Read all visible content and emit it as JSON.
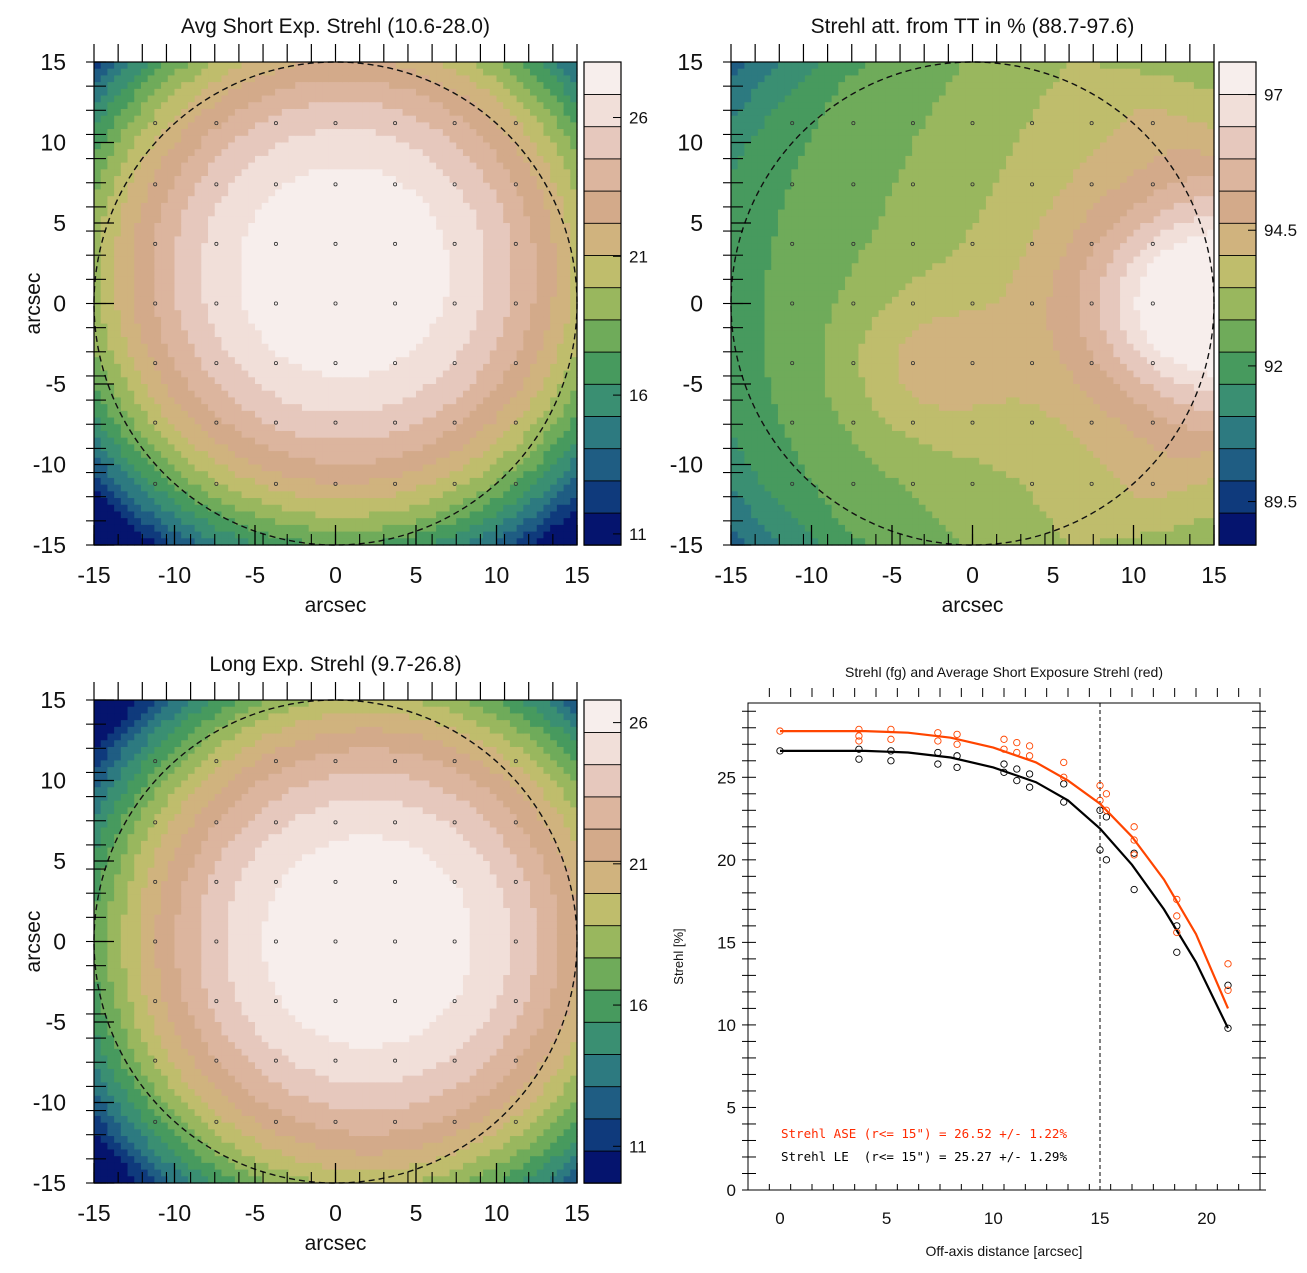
{
  "chart_data": [
    {
      "type": "heatmap",
      "title": "Avg Short Exp. Strehl (10.6-28.0)",
      "xlabel": "arcsec",
      "ylabel": "arcsec",
      "xlim": [
        -15,
        15
      ],
      "ylim": [
        -15,
        15
      ],
      "x_ticks": [
        "-15",
        "-10",
        "-5",
        "0",
        "5",
        "10",
        "15"
      ],
      "y_ticks": [
        "15",
        "10",
        "5",
        "0",
        "-5",
        "-10",
        "-15"
      ],
      "value_range": [
        10.6,
        28.0
      ],
      "colorbar_ticks": [
        "26",
        "21",
        "16",
        "11"
      ],
      "colorbar_tick_values": [
        26,
        21,
        16,
        11
      ],
      "field_model": "radial",
      "center": [
        0.5,
        2.0
      ],
      "peak": 28.0,
      "edge": 10.6,
      "overlay": "dashed circle r = 15 arcsec, sample grid points"
    },
    {
      "type": "heatmap",
      "title": "Strehl att. from TT in % (88.7-97.6)",
      "xlabel": "arcsec",
      "ylabel": "",
      "xlim": [
        -15,
        15
      ],
      "ylim": [
        -15,
        15
      ],
      "x_ticks": [
        "-15",
        "-10",
        "-5",
        "0",
        "5",
        "10",
        "15"
      ],
      "y_ticks": [
        "15",
        "10",
        "5",
        "0",
        "-5",
        "-10",
        "-15"
      ],
      "value_range": [
        88.7,
        97.6
      ],
      "colorbar_ticks": [
        "97",
        "94.5",
        "92",
        "89.5"
      ],
      "colorbar_tick_values": [
        97,
        94.5,
        92,
        89.5
      ],
      "field_model": "tt",
      "overlay": "dashed circle r = 15 arcsec, sample grid points"
    },
    {
      "type": "heatmap",
      "title": "Long Exp. Strehl (9.7-26.8)",
      "xlabel": "arcsec",
      "ylabel": "arcsec",
      "xlim": [
        -15,
        15
      ],
      "ylim": [
        -15,
        15
      ],
      "x_ticks": [
        "-15",
        "-10",
        "-5",
        "0",
        "5",
        "10",
        "15"
      ],
      "y_ticks": [
        "15",
        "10",
        "5",
        "0",
        "-5",
        "-10",
        "-15"
      ],
      "value_range": [
        9.7,
        26.8
      ],
      "colorbar_ticks": [
        "26",
        "21",
        "16",
        "11"
      ],
      "colorbar_tick_values": [
        26,
        21,
        16,
        11
      ],
      "field_model": "radial",
      "center": [
        2.0,
        0.0
      ],
      "peak": 26.8,
      "edge": 9.7,
      "overlay": "dashed circle r = 15 arcsec, sample grid points"
    },
    {
      "type": "scatter",
      "title": "Strehl (fg) and Average Short Exposure Strehl (red)",
      "xlabel": "Off-axis distance [arcsec]",
      "ylabel": "Strehl [%]",
      "xlim": [
        -1.5,
        22.5
      ],
      "ylim": [
        0,
        29.5
      ],
      "x_ticks": [
        "0",
        "5",
        "10",
        "15",
        "20"
      ],
      "y_ticks": [
        "0",
        "5",
        "10",
        "15",
        "20",
        "25"
      ],
      "vline_x": 15,
      "series": [
        {
          "color": "#ff4500",
          "fit_curve": [
            [
              0,
              27.8
            ],
            [
              2,
              27.8
            ],
            [
              4,
              27.8
            ],
            [
              6,
              27.7
            ],
            [
              8,
              27.4
            ],
            [
              10,
              26.8
            ],
            [
              12,
              25.9
            ],
            [
              13.5,
              24.8
            ],
            [
              15,
              23.4
            ],
            [
              16.5,
              21.4
            ],
            [
              18,
              18.8
            ],
            [
              19.5,
              15.5
            ],
            [
              21,
              11.0
            ]
          ],
          "points": [
            [
              0,
              27.8
            ],
            [
              3.7,
              27.9
            ],
            [
              3.7,
              27.5
            ],
            [
              3.7,
              27.2
            ],
            [
              5.2,
              27.9
            ],
            [
              5.2,
              27.3
            ],
            [
              7.4,
              27.7
            ],
            [
              7.4,
              27.2
            ],
            [
              8.3,
              27.6
            ],
            [
              8.3,
              27.0
            ],
            [
              10.5,
              27.3
            ],
            [
              10.5,
              26.7
            ],
            [
              11.1,
              27.1
            ],
            [
              11.1,
              26.5
            ],
            [
              11.7,
              26.9
            ],
            [
              11.7,
              26.3
            ],
            [
              13.3,
              25.9
            ],
            [
              13.3,
              25.0
            ],
            [
              15,
              24.5
            ],
            [
              15,
              23.6
            ],
            [
              15.3,
              24.0
            ],
            [
              15.3,
              23.0
            ],
            [
              16.6,
              22.0
            ],
            [
              16.6,
              21.2
            ],
            [
              16.6,
              20.3
            ],
            [
              18.6,
              17.6
            ],
            [
              18.6,
              16.6
            ],
            [
              18.6,
              15.6
            ],
            [
              21,
              13.7
            ],
            [
              21,
              12.1
            ]
          ]
        },
        {
          "color": "#000000",
          "fit_curve": [
            [
              0,
              26.6
            ],
            [
              2,
              26.6
            ],
            [
              4,
              26.6
            ],
            [
              6,
              26.5
            ],
            [
              8,
              26.2
            ],
            [
              10,
              25.6
            ],
            [
              12,
              24.7
            ],
            [
              13.5,
              23.6
            ],
            [
              15,
              21.9
            ],
            [
              16.5,
              19.7
            ],
            [
              18,
              17.0
            ],
            [
              19.5,
              13.8
            ],
            [
              21,
              9.8
            ]
          ],
          "points": [
            [
              0,
              26.6
            ],
            [
              3.7,
              26.7
            ],
            [
              3.7,
              26.1
            ],
            [
              5.2,
              26.6
            ],
            [
              5.2,
              26.0
            ],
            [
              7.4,
              26.5
            ],
            [
              7.4,
              25.8
            ],
            [
              8.3,
              26.3
            ],
            [
              8.3,
              25.6
            ],
            [
              10.5,
              25.8
            ],
            [
              10.5,
              25.3
            ],
            [
              11.1,
              25.5
            ],
            [
              11.1,
              24.8
            ],
            [
              11.7,
              25.2
            ],
            [
              11.7,
              24.4
            ],
            [
              13.3,
              24.6
            ],
            [
              13.3,
              23.5
            ],
            [
              15,
              23.0
            ],
            [
              15,
              20.6
            ],
            [
              15.3,
              22.6
            ],
            [
              15.3,
              20.0
            ],
            [
              16.6,
              20.4
            ],
            [
              16.6,
              18.2
            ],
            [
              18.6,
              16.0
            ],
            [
              18.6,
              14.4
            ],
            [
              21,
              12.4
            ],
            [
              21,
              9.8
            ]
          ]
        }
      ],
      "annotations": [
        {
          "text": "Strehl ASE (r<= 15\") = 26.52 +/- 1.22%",
          "color": "#ff2a00"
        },
        {
          "text": "Strehl LE  (r<= 15\") = 25.27 +/- 1.29%",
          "color": "#000000"
        }
      ]
    }
  ],
  "colors": {
    "palette": [
      "#05146e",
      "#0f3a7c",
      "#1f5d83",
      "#2d7a80",
      "#3a8f72",
      "#479a5e",
      "#6fab5a",
      "#99b75e",
      "#bfbd6c",
      "#d0b37e",
      "#d3aa8a",
      "#dcb59e",
      "#e6c8bd",
      "#f1dfd9",
      "#f7eeec"
    ],
    "fit_red": "#ff4500",
    "fit_black": "#000000"
  }
}
